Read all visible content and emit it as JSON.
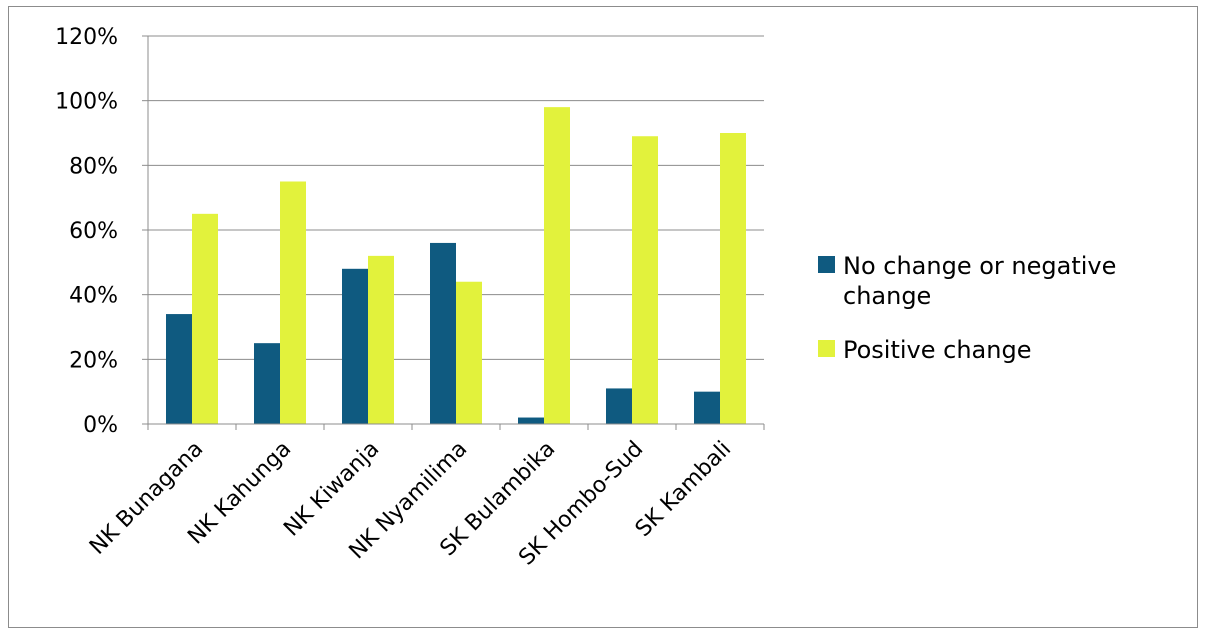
{
  "chart_data": {
    "type": "bar",
    "categories": [
      "NK Bunagana",
      "NK Kahunga",
      "NK Kiwanja",
      "NK Nyamilima",
      "SK Bulambika",
      "SK Hombo-Sud",
      "SK Kambali"
    ],
    "series": [
      {
        "name": "No change or negative change",
        "values": [
          34,
          25,
          48,
          56,
          2,
          11,
          10
        ],
        "color": "#0f5a80"
      },
      {
        "name": "Positive change",
        "values": [
          65,
          75,
          52,
          44,
          98,
          89,
          90
        ],
        "color": "#e2f23c"
      }
    ],
    "y_ticks": [
      "0%",
      "20%",
      "40%",
      "60%",
      "80%",
      "100%",
      "120%"
    ],
    "ylim": [
      0,
      120
    ],
    "y_unit": "percent",
    "grid": true,
    "legend_position": "right",
    "title": "",
    "xlabel": "",
    "ylabel": ""
  }
}
